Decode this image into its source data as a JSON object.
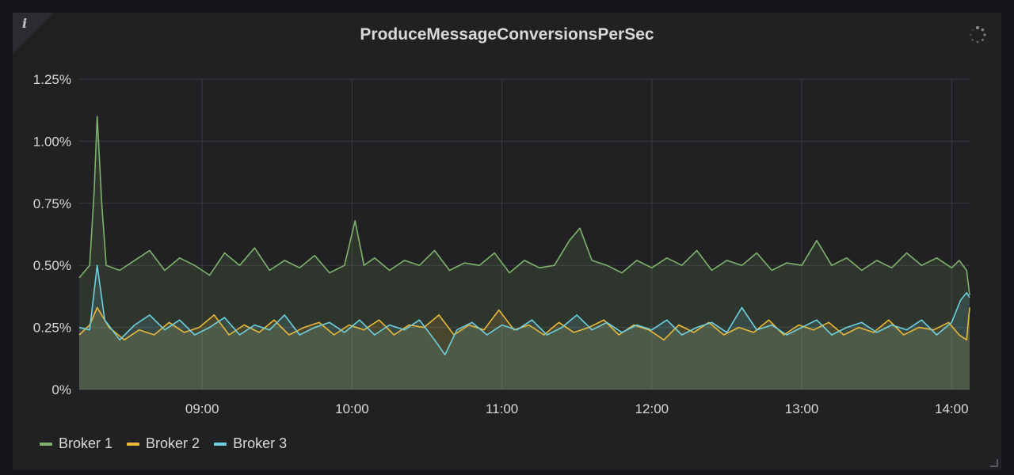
{
  "panel": {
    "info_icon": "i",
    "loading_icon": "spinner-icon"
  },
  "chart_data": {
    "type": "line",
    "title": "ProduceMessageConversionsPerSec",
    "xlabel": "",
    "ylabel": "",
    "x_tick_labels": [
      "09:00",
      "10:00",
      "11:00",
      "12:00",
      "13:00",
      "14:00"
    ],
    "x_tick_hours": [
      9,
      10,
      11,
      12,
      13,
      14
    ],
    "x_range_hours": [
      8.18,
      14.12
    ],
    "y_tick_labels": [
      "0%",
      "0.25%",
      "0.50%",
      "0.75%",
      "1.00%",
      "1.25%"
    ],
    "y_tick_values": [
      0,
      0.25,
      0.5,
      0.75,
      1.0,
      1.25
    ],
    "ylim": [
      0,
      1.25
    ],
    "grid": true,
    "legend_position": "bottom-left",
    "series": [
      {
        "name": "Broker 1",
        "color": "#7eb26d",
        "points": [
          [
            8.18,
            0.45
          ],
          [
            8.25,
            0.5
          ],
          [
            8.28,
            0.8
          ],
          [
            8.3,
            1.1
          ],
          [
            8.33,
            0.75
          ],
          [
            8.36,
            0.5
          ],
          [
            8.45,
            0.48
          ],
          [
            8.55,
            0.52
          ],
          [
            8.65,
            0.56
          ],
          [
            8.75,
            0.48
          ],
          [
            8.85,
            0.53
          ],
          [
            8.95,
            0.5
          ],
          [
            9.05,
            0.46
          ],
          [
            9.15,
            0.55
          ],
          [
            9.25,
            0.5
          ],
          [
            9.35,
            0.57
          ],
          [
            9.45,
            0.48
          ],
          [
            9.55,
            0.52
          ],
          [
            9.65,
            0.49
          ],
          [
            9.75,
            0.54
          ],
          [
            9.85,
            0.47
          ],
          [
            9.95,
            0.5
          ],
          [
            10.02,
            0.68
          ],
          [
            10.08,
            0.5
          ],
          [
            10.15,
            0.53
          ],
          [
            10.25,
            0.48
          ],
          [
            10.35,
            0.52
          ],
          [
            10.45,
            0.5
          ],
          [
            10.55,
            0.56
          ],
          [
            10.65,
            0.48
          ],
          [
            10.75,
            0.51
          ],
          [
            10.85,
            0.5
          ],
          [
            10.95,
            0.55
          ],
          [
            11.05,
            0.47
          ],
          [
            11.15,
            0.52
          ],
          [
            11.25,
            0.49
          ],
          [
            11.35,
            0.5
          ],
          [
            11.45,
            0.6
          ],
          [
            11.52,
            0.65
          ],
          [
            11.6,
            0.52
          ],
          [
            11.7,
            0.5
          ],
          [
            11.8,
            0.47
          ],
          [
            11.9,
            0.52
          ],
          [
            12.0,
            0.49
          ],
          [
            12.1,
            0.53
          ],
          [
            12.2,
            0.5
          ],
          [
            12.3,
            0.56
          ],
          [
            12.4,
            0.48
          ],
          [
            12.5,
            0.52
          ],
          [
            12.6,
            0.5
          ],
          [
            12.7,
            0.55
          ],
          [
            12.8,
            0.48
          ],
          [
            12.9,
            0.51
          ],
          [
            13.0,
            0.5
          ],
          [
            13.1,
            0.6
          ],
          [
            13.2,
            0.5
          ],
          [
            13.3,
            0.53
          ],
          [
            13.4,
            0.48
          ],
          [
            13.5,
            0.52
          ],
          [
            13.6,
            0.49
          ],
          [
            13.7,
            0.55
          ],
          [
            13.8,
            0.5
          ],
          [
            13.9,
            0.53
          ],
          [
            14.0,
            0.49
          ],
          [
            14.05,
            0.52
          ],
          [
            14.1,
            0.48
          ],
          [
            14.12,
            0.38
          ]
        ]
      },
      {
        "name": "Broker 2",
        "color": "#eab839",
        "points": [
          [
            8.18,
            0.22
          ],
          [
            8.25,
            0.26
          ],
          [
            8.3,
            0.33
          ],
          [
            8.38,
            0.25
          ],
          [
            8.48,
            0.2
          ],
          [
            8.58,
            0.24
          ],
          [
            8.68,
            0.22
          ],
          [
            8.78,
            0.27
          ],
          [
            8.88,
            0.23
          ],
          [
            8.98,
            0.25
          ],
          [
            9.08,
            0.3
          ],
          [
            9.18,
            0.22
          ],
          [
            9.28,
            0.26
          ],
          [
            9.38,
            0.23
          ],
          [
            9.48,
            0.28
          ],
          [
            9.58,
            0.22
          ],
          [
            9.68,
            0.25
          ],
          [
            9.78,
            0.27
          ],
          [
            9.88,
            0.22
          ],
          [
            9.98,
            0.26
          ],
          [
            10.08,
            0.24
          ],
          [
            10.18,
            0.28
          ],
          [
            10.28,
            0.22
          ],
          [
            10.38,
            0.26
          ],
          [
            10.48,
            0.25
          ],
          [
            10.58,
            0.3
          ],
          [
            10.68,
            0.22
          ],
          [
            10.78,
            0.26
          ],
          [
            10.88,
            0.24
          ],
          [
            10.98,
            0.32
          ],
          [
            11.08,
            0.24
          ],
          [
            11.18,
            0.26
          ],
          [
            11.28,
            0.22
          ],
          [
            11.38,
            0.27
          ],
          [
            11.48,
            0.23
          ],
          [
            11.58,
            0.25
          ],
          [
            11.68,
            0.28
          ],
          [
            11.78,
            0.22
          ],
          [
            11.88,
            0.26
          ],
          [
            11.98,
            0.24
          ],
          [
            12.08,
            0.2
          ],
          [
            12.18,
            0.26
          ],
          [
            12.28,
            0.23
          ],
          [
            12.38,
            0.27
          ],
          [
            12.48,
            0.22
          ],
          [
            12.58,
            0.25
          ],
          [
            12.68,
            0.23
          ],
          [
            12.78,
            0.28
          ],
          [
            12.88,
            0.22
          ],
          [
            12.98,
            0.26
          ],
          [
            13.08,
            0.24
          ],
          [
            13.18,
            0.27
          ],
          [
            13.28,
            0.22
          ],
          [
            13.38,
            0.25
          ],
          [
            13.48,
            0.23
          ],
          [
            13.58,
            0.28
          ],
          [
            13.68,
            0.22
          ],
          [
            13.78,
            0.25
          ],
          [
            13.88,
            0.24
          ],
          [
            13.98,
            0.27
          ],
          [
            14.05,
            0.22
          ],
          [
            14.1,
            0.2
          ],
          [
            14.12,
            0.33
          ]
        ]
      },
      {
        "name": "Broker 3",
        "color": "#6ed0e0",
        "points": [
          [
            8.18,
            0.25
          ],
          [
            8.25,
            0.24
          ],
          [
            8.3,
            0.5
          ],
          [
            8.35,
            0.28
          ],
          [
            8.45,
            0.2
          ],
          [
            8.55,
            0.26
          ],
          [
            8.65,
            0.3
          ],
          [
            8.75,
            0.24
          ],
          [
            8.85,
            0.28
          ],
          [
            8.95,
            0.22
          ],
          [
            9.05,
            0.25
          ],
          [
            9.15,
            0.29
          ],
          [
            9.25,
            0.22
          ],
          [
            9.35,
            0.26
          ],
          [
            9.45,
            0.24
          ],
          [
            9.55,
            0.3
          ],
          [
            9.65,
            0.22
          ],
          [
            9.75,
            0.25
          ],
          [
            9.85,
            0.27
          ],
          [
            9.95,
            0.23
          ],
          [
            10.05,
            0.28
          ],
          [
            10.15,
            0.22
          ],
          [
            10.25,
            0.26
          ],
          [
            10.35,
            0.24
          ],
          [
            10.45,
            0.28
          ],
          [
            10.55,
            0.2
          ],
          [
            10.62,
            0.14
          ],
          [
            10.7,
            0.24
          ],
          [
            10.8,
            0.27
          ],
          [
            10.9,
            0.22
          ],
          [
            11.0,
            0.26
          ],
          [
            11.1,
            0.24
          ],
          [
            11.2,
            0.28
          ],
          [
            11.3,
            0.22
          ],
          [
            11.4,
            0.25
          ],
          [
            11.5,
            0.3
          ],
          [
            11.6,
            0.24
          ],
          [
            11.7,
            0.27
          ],
          [
            11.8,
            0.23
          ],
          [
            11.9,
            0.26
          ],
          [
            12.0,
            0.24
          ],
          [
            12.1,
            0.28
          ],
          [
            12.2,
            0.22
          ],
          [
            12.3,
            0.25
          ],
          [
            12.4,
            0.27
          ],
          [
            12.5,
            0.23
          ],
          [
            12.6,
            0.33
          ],
          [
            12.7,
            0.24
          ],
          [
            12.8,
            0.26
          ],
          [
            12.9,
            0.22
          ],
          [
            13.0,
            0.25
          ],
          [
            13.1,
            0.28
          ],
          [
            13.2,
            0.22
          ],
          [
            13.3,
            0.25
          ],
          [
            13.4,
            0.27
          ],
          [
            13.5,
            0.23
          ],
          [
            13.6,
            0.26
          ],
          [
            13.7,
            0.24
          ],
          [
            13.8,
            0.28
          ],
          [
            13.9,
            0.22
          ],
          [
            14.0,
            0.27
          ],
          [
            14.06,
            0.36
          ],
          [
            14.1,
            0.39
          ],
          [
            14.12,
            0.37
          ]
        ]
      }
    ]
  }
}
